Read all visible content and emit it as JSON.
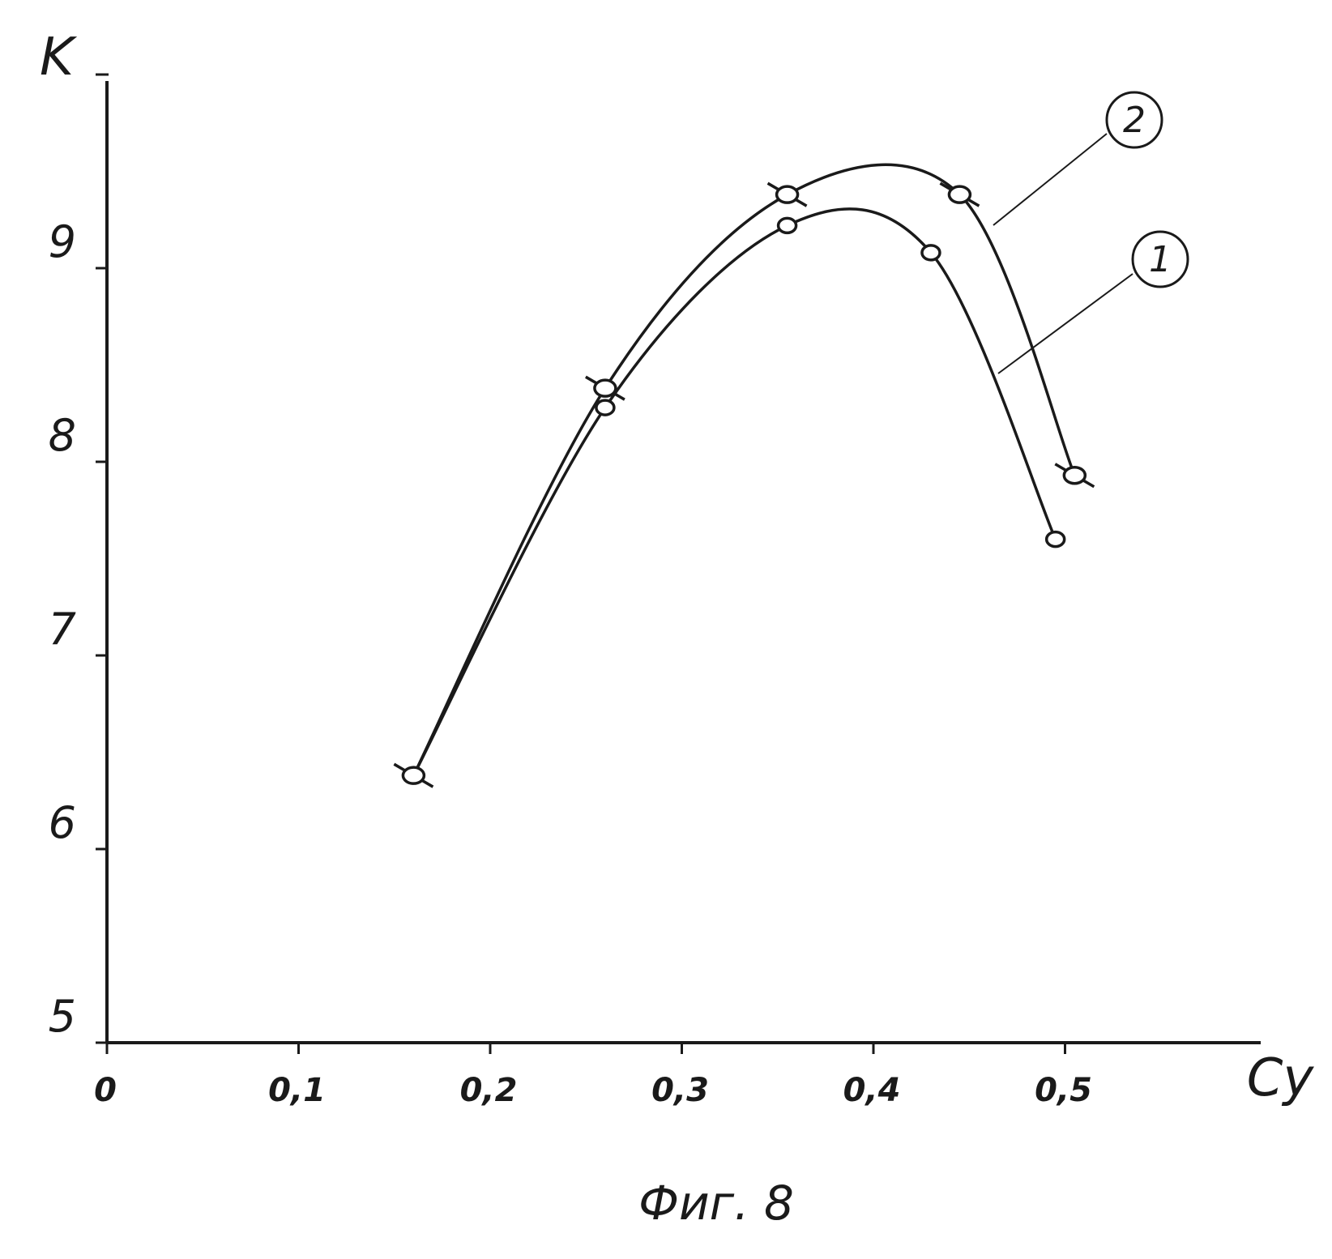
{
  "chart_data": {
    "type": "line",
    "title": "",
    "xlabel": "Cy",
    "ylabel": "K",
    "xlim": [
      0,
      0.6
    ],
    "ylim": [
      5,
      10
    ],
    "x_ticks": [
      0,
      0.1,
      0.2,
      0.3,
      0.4,
      0.5
    ],
    "x_tick_labels": [
      "0",
      "0,1",
      "0,2",
      "0,3",
      "0,4",
      "0,5"
    ],
    "y_ticks": [
      5,
      6,
      7,
      8,
      9
    ],
    "y_tick_labels": [
      "5",
      "6",
      "7",
      "8",
      "9"
    ],
    "grid": false,
    "series": [
      {
        "name": "1",
        "marker": "circle",
        "x": [
          0.16,
          0.26,
          0.355,
          0.43,
          0.495
        ],
        "y": [
          6.38,
          8.28,
          9.22,
          9.08,
          7.6
        ]
      },
      {
        "name": "2",
        "marker": "circle-cross",
        "x": [
          0.16,
          0.26,
          0.355,
          0.445,
          0.505
        ],
        "y": [
          6.38,
          8.38,
          9.38,
          9.38,
          7.93
        ]
      }
    ],
    "caption": "Фиг. 8"
  }
}
